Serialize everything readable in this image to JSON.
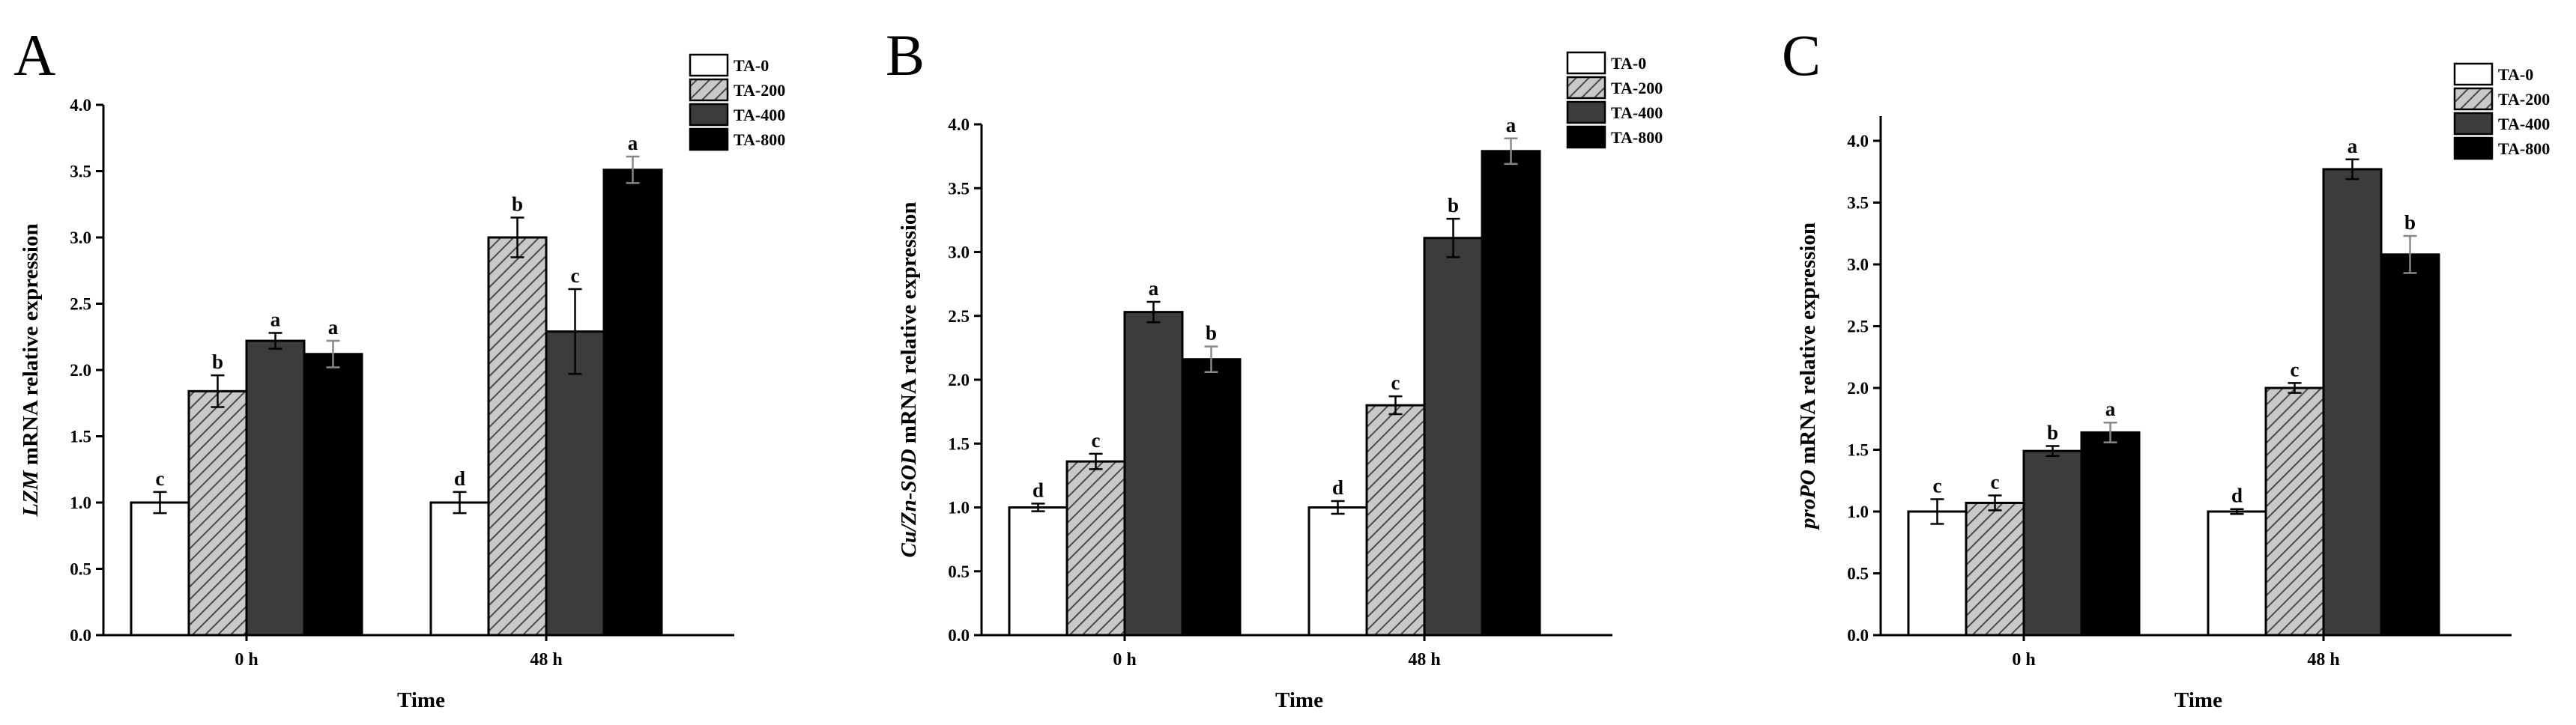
{
  "figure": {
    "legend_series": [
      "TA-0",
      "TA-200",
      "TA-400",
      "TA-800"
    ],
    "series_fills": [
      "#ffffff",
      "hatch",
      "#3c3c3c",
      "#000000"
    ]
  },
  "chart_data": [
    {
      "panel": "A",
      "type": "bar",
      "title": "",
      "categories": [
        "0 h",
        "48 h"
      ],
      "xlabel": "Time",
      "ylabel_italic": "LZM",
      "ylabel_rest": " mRNA relative expression",
      "ylim": [
        0,
        4.0
      ],
      "yticks": [
        "0.0",
        "0.5",
        "1.0",
        "1.5",
        "2.0",
        "2.5",
        "3.0",
        "3.5",
        "4.0"
      ],
      "legend_position": "top-right",
      "series": [
        {
          "name": "TA-0",
          "values": [
            1.0,
            1.0
          ],
          "errors": [
            0.08,
            0.08
          ],
          "letters": [
            "c",
            "d"
          ]
        },
        {
          "name": "TA-200",
          "values": [
            1.84,
            3.0
          ],
          "errors": [
            0.12,
            0.15
          ],
          "letters": [
            "b",
            "b"
          ]
        },
        {
          "name": "TA-400",
          "values": [
            2.22,
            2.29
          ],
          "errors": [
            0.06,
            0.32
          ],
          "letters": [
            "a",
            "c"
          ]
        },
        {
          "name": "TA-800",
          "values": [
            2.12,
            3.51
          ],
          "errors": [
            0.1,
            0.1
          ],
          "letters": [
            "a",
            "a"
          ]
        }
      ]
    },
    {
      "panel": "B",
      "type": "bar",
      "title": "",
      "categories": [
        "0 h",
        "48 h"
      ],
      "xlabel": "Time",
      "ylabel_italic": "Cu/Zn-SOD",
      "ylabel_rest": " mRNA relative expression",
      "ylim": [
        0,
        4.0
      ],
      "yticks": [
        "0.0",
        "0.5",
        "1.0",
        "1.5",
        "2.0",
        "2.5",
        "3.0",
        "3.5",
        "4.0"
      ],
      "legend_position": "top-right",
      "series": [
        {
          "name": "TA-0",
          "values": [
            1.0,
            1.0
          ],
          "errors": [
            0.03,
            0.05
          ],
          "letters": [
            "d",
            "d"
          ]
        },
        {
          "name": "TA-200",
          "values": [
            1.36,
            1.8
          ],
          "errors": [
            0.06,
            0.07
          ],
          "letters": [
            "c",
            "c"
          ]
        },
        {
          "name": "TA-400",
          "values": [
            2.53,
            3.11
          ],
          "errors": [
            0.08,
            0.15
          ],
          "letters": [
            "a",
            "b"
          ]
        },
        {
          "name": "TA-800",
          "values": [
            2.16,
            3.79
          ],
          "errors": [
            0.1,
            0.1
          ],
          "letters": [
            "b",
            "a"
          ]
        }
      ]
    },
    {
      "panel": "C",
      "type": "bar",
      "title": "",
      "categories": [
        "0 h",
        "48 h"
      ],
      "xlabel": "Time",
      "ylabel_italic": "proPO",
      "ylabel_rest": " mRNA relative expression",
      "ylim": [
        0,
        4.2
      ],
      "yticks": [
        "0.0",
        "0.5",
        "1.0",
        "1.5",
        "2.0",
        "2.5",
        "3.0",
        "3.5",
        "4.0"
      ],
      "legend_position": "top-right",
      "series": [
        {
          "name": "TA-0",
          "values": [
            1.0,
            1.0
          ],
          "errors": [
            0.1,
            0.02
          ],
          "letters": [
            "c",
            "d"
          ]
        },
        {
          "name": "TA-200",
          "values": [
            1.07,
            2.0
          ],
          "errors": [
            0.06,
            0.04
          ],
          "letters": [
            "c",
            "c"
          ]
        },
        {
          "name": "TA-400",
          "values": [
            1.49,
            3.77
          ],
          "errors": [
            0.04,
            0.08
          ],
          "letters": [
            "b",
            "a"
          ]
        },
        {
          "name": "TA-800",
          "values": [
            1.64,
            3.08
          ],
          "errors": [
            0.08,
            0.15
          ],
          "letters": [
            "a",
            "b"
          ]
        }
      ]
    }
  ]
}
